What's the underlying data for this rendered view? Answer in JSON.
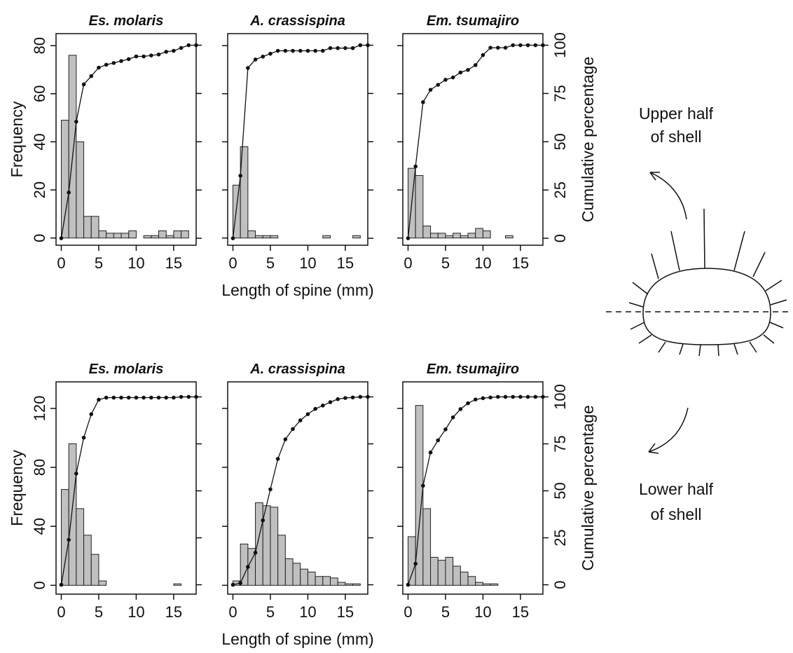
{
  "chart_data": [
    {
      "type": "histogram",
      "title": "Es. molaris",
      "ylabel": "Frequency",
      "color": "#c0c0c0",
      "bins": [
        0,
        1,
        2,
        3,
        4,
        5,
        6,
        7,
        8,
        9,
        10,
        11,
        12,
        13,
        14,
        15,
        16,
        17,
        18
      ],
      "counts": [
        49,
        76,
        40,
        9,
        9,
        3,
        2,
        2,
        2,
        3,
        0,
        1,
        1,
        3,
        1,
        3,
        3,
        0
      ],
      "cumulative_percentage": [
        0,
        23.7,
        60.4,
        79.7,
        84,
        88.4,
        89.9,
        90.8,
        91.8,
        92.8,
        94.2,
        94.2,
        94.7,
        95.2,
        96.6,
        97.1,
        98.6,
        100,
        100
      ],
      "xlim": [
        -0.7,
        18
      ],
      "xticks": [
        0,
        5,
        10,
        15
      ],
      "ylim": [
        -3,
        85
      ],
      "yticks": [
        0,
        20,
        40,
        60,
        80
      ],
      "y2lim": [
        -3.6,
        106
      ]
    },
    {
      "type": "histogram",
      "title": "A. crassispina",
      "xlabel": "Length of spine (mm)",
      "color": "#c0c0c0",
      "bins": [
        0,
        1,
        2,
        3,
        4,
        5,
        6,
        7,
        8,
        9,
        10,
        11,
        12,
        13,
        14,
        15,
        16,
        17,
        18
      ],
      "counts": [
        22,
        38,
        3,
        1,
        1,
        1,
        0,
        0,
        0,
        0,
        0,
        0,
        1,
        0,
        0,
        0,
        1,
        0
      ],
      "cumulative_percentage": [
        0,
        32.4,
        88.2,
        92.6,
        94.1,
        95.6,
        97.1,
        97.1,
        97.1,
        97.1,
        97.1,
        97.1,
        97.1,
        98.5,
        98.5,
        98.5,
        98.5,
        100,
        100
      ],
      "xlim": [
        -0.7,
        18
      ],
      "xticks": [
        0,
        5,
        10,
        15
      ],
      "ylim": [
        -3,
        85
      ],
      "y2lim": [
        -3.6,
        106
      ]
    },
    {
      "type": "histogram",
      "title": "Em. tsumajiro",
      "y2label": "Cumulative percentage",
      "color": "#c0c0c0",
      "bins": [
        0,
        1,
        2,
        3,
        4,
        5,
        6,
        7,
        8,
        9,
        10,
        11,
        12,
        13,
        14,
        15,
        16,
        17,
        18
      ],
      "counts": [
        29,
        26,
        5,
        2,
        2,
        1,
        2,
        1,
        2,
        4,
        3,
        0,
        0,
        1,
        0,
        0,
        0,
        0
      ],
      "cumulative_percentage": [
        0,
        37.2,
        70.5,
        76.9,
        79.5,
        82.1,
        83.3,
        85.9,
        87.2,
        89.7,
        94.9,
        98.7,
        98.7,
        98.7,
        100,
        100,
        100,
        100,
        100
      ],
      "xlim": [
        -0.7,
        18
      ],
      "xticks": [
        0,
        5,
        10,
        15
      ],
      "ylim": [
        -3,
        85
      ],
      "y2lim": [
        -3.6,
        106
      ],
      "y2ticks": [
        0,
        25,
        50,
        75,
        100
      ]
    },
    {
      "type": "histogram",
      "title": "Es. molaris",
      "ylabel": "Frequency",
      "color": "#c0c0c0",
      "bins": [
        0,
        1,
        2,
        3,
        4,
        5,
        6,
        7,
        8,
        9,
        10,
        11,
        12,
        13,
        14,
        15,
        16,
        17,
        18
      ],
      "counts": [
        65,
        96,
        52,
        34,
        21,
        3,
        0,
        0,
        0,
        0,
        0,
        0,
        0,
        0,
        0,
        1,
        0,
        0
      ],
      "cumulative_percentage": [
        0,
        23.9,
        59.2,
        78.3,
        90.8,
        98.5,
        99.6,
        99.6,
        99.6,
        99.6,
        99.6,
        99.6,
        99.6,
        99.6,
        99.6,
        99.6,
        100,
        100,
        100
      ],
      "xlim": [
        -0.7,
        18
      ],
      "xticks": [
        0,
        5,
        10,
        15
      ],
      "ylim": [
        -6,
        138
      ],
      "yticks": [
        0,
        40,
        80,
        120
      ],
      "y2lim": [
        -5,
        108
      ]
    },
    {
      "type": "histogram",
      "title": "A. crassispina",
      "xlabel": "Length of spine (mm)",
      "color": "#c0c0c0",
      "bins": [
        0,
        1,
        2,
        3,
        4,
        5,
        6,
        7,
        8,
        9,
        10,
        11,
        12,
        13,
        14,
        15,
        16,
        17,
        18
      ],
      "counts": [
        3,
        28,
        25,
        56,
        54,
        53,
        34,
        18,
        15,
        11,
        9,
        6,
        6,
        5,
        2,
        1,
        1,
        0
      ],
      "cumulative_percentage": [
        0,
        0.9,
        9.5,
        17.1,
        34.3,
        50.8,
        67,
        77.4,
        82.9,
        87.5,
        90.8,
        93.6,
        95.4,
        97.2,
        98.8,
        99.4,
        99.7,
        100,
        100
      ],
      "xlim": [
        -0.7,
        18
      ],
      "xticks": [
        0,
        5,
        10,
        15
      ],
      "ylim": [
        -6,
        138
      ],
      "y2lim": [
        -5,
        108
      ]
    },
    {
      "type": "histogram",
      "title": "Em. tsumajiro",
      "y2label": "Cumulative percentage",
      "color": "#c0c0c0",
      "bins": [
        0,
        1,
        2,
        3,
        4,
        5,
        6,
        7,
        8,
        9,
        10,
        11,
        12,
        13,
        14,
        15,
        16,
        17,
        18
      ],
      "counts": [
        33,
        122,
        52,
        19,
        17,
        19,
        13,
        9,
        6,
        2,
        1,
        1,
        0,
        0,
        0,
        0,
        0,
        0
      ],
      "cumulative_percentage": [
        0,
        11.2,
        52.7,
        70.4,
        76.9,
        82.7,
        89.1,
        93.5,
        96.6,
        98.6,
        99.3,
        99.7,
        100,
        100,
        100,
        100,
        100,
        100,
        100
      ],
      "xlim": [
        -0.7,
        18
      ],
      "xticks": [
        0,
        5,
        10,
        15
      ],
      "ylim": [
        -6,
        138
      ],
      "y2lim": [
        -5,
        108
      ],
      "y2ticks": [
        0,
        25,
        50,
        75,
        100
      ]
    }
  ],
  "diagram": {
    "upper_label": [
      "Upper half",
      "of shell"
    ],
    "lower_label": [
      "Lower half",
      "of shell"
    ]
  }
}
